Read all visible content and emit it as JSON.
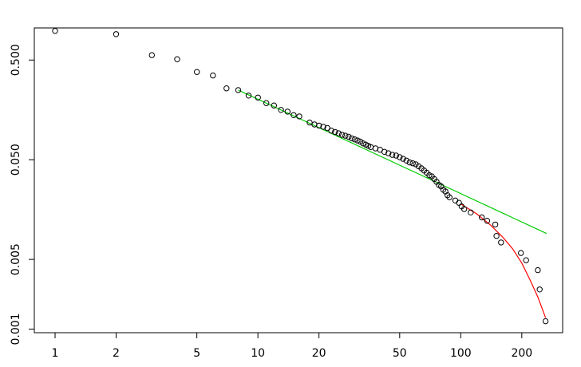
{
  "chart_data": {
    "type": "scatter",
    "title": "",
    "xlabel": "",
    "ylabel": "",
    "x_scale": "log",
    "y_scale": "log",
    "xlim": [
      0.79,
      318
    ],
    "ylim": [
      0.00092,
      1.05
    ],
    "x_ticks": [
      {
        "value": 1,
        "label": "1"
      },
      {
        "value": 2,
        "label": "2"
      },
      {
        "value": 5,
        "label": "5"
      },
      {
        "value": 10,
        "label": "10"
      },
      {
        "value": 20,
        "label": "20"
      },
      {
        "value": 50,
        "label": "50"
      },
      {
        "value": 100,
        "label": "100"
      },
      {
        "value": 200,
        "label": "200"
      }
    ],
    "y_ticks": [
      {
        "value": 0.001,
        "label": "0.001"
      },
      {
        "value": 0.005,
        "label": "0.005"
      },
      {
        "value": 0.05,
        "label": "0.050"
      },
      {
        "value": 0.5,
        "label": "0.500"
      }
    ],
    "grid": false,
    "point_color": "#000000",
    "points": [
      {
        "x": 1,
        "y": 0.98
      },
      {
        "x": 2,
        "y": 0.91
      },
      {
        "x": 3,
        "y": 0.56
      },
      {
        "x": 4,
        "y": 0.51
      },
      {
        "x": 5,
        "y": 0.38
      },
      {
        "x": 6,
        "y": 0.35
      },
      {
        "x": 7,
        "y": 0.26
      },
      {
        "x": 8,
        "y": 0.25
      },
      {
        "x": 9,
        "y": 0.22
      },
      {
        "x": 10,
        "y": 0.21
      },
      {
        "x": 11,
        "y": 0.185
      },
      {
        "x": 12,
        "y": 0.175
      },
      {
        "x": 13,
        "y": 0.158
      },
      {
        "x": 14,
        "y": 0.152
      },
      {
        "x": 15,
        "y": 0.14
      },
      {
        "x": 16,
        "y": 0.136
      },
      {
        "x": 18,
        "y": 0.118
      },
      {
        "x": 19,
        "y": 0.113
      },
      {
        "x": 20,
        "y": 0.11
      },
      {
        "x": 21,
        "y": 0.107
      },
      {
        "x": 22,
        "y": 0.104
      },
      {
        "x": 23,
        "y": 0.098
      },
      {
        "x": 24,
        "y": 0.095
      },
      {
        "x": 25,
        "y": 0.092
      },
      {
        "x": 26,
        "y": 0.089
      },
      {
        "x": 27,
        "y": 0.087
      },
      {
        "x": 28,
        "y": 0.085
      },
      {
        "x": 29,
        "y": 0.082
      },
      {
        "x": 30,
        "y": 0.08
      },
      {
        "x": 31,
        "y": 0.078
      },
      {
        "x": 32,
        "y": 0.076
      },
      {
        "x": 33,
        "y": 0.073
      },
      {
        "x": 34,
        "y": 0.071
      },
      {
        "x": 35,
        "y": 0.069
      },
      {
        "x": 36,
        "y": 0.067
      },
      {
        "x": 38,
        "y": 0.065
      },
      {
        "x": 40,
        "y": 0.063
      },
      {
        "x": 42,
        "y": 0.06
      },
      {
        "x": 44,
        "y": 0.058
      },
      {
        "x": 46,
        "y": 0.056
      },
      {
        "x": 48,
        "y": 0.055
      },
      {
        "x": 50,
        "y": 0.053
      },
      {
        "x": 52,
        "y": 0.051
      },
      {
        "x": 54,
        "y": 0.049
      },
      {
        "x": 56,
        "y": 0.047
      },
      {
        "x": 58,
        "y": 0.046
      },
      {
        "x": 60,
        "y": 0.045
      },
      {
        "x": 62,
        "y": 0.043
      },
      {
        "x": 64,
        "y": 0.041
      },
      {
        "x": 66,
        "y": 0.039
      },
      {
        "x": 68,
        "y": 0.037
      },
      {
        "x": 70,
        "y": 0.035
      },
      {
        "x": 72,
        "y": 0.034
      },
      {
        "x": 74,
        "y": 0.032
      },
      {
        "x": 76,
        "y": 0.03
      },
      {
        "x": 78,
        "y": 0.028
      },
      {
        "x": 80,
        "y": 0.027
      },
      {
        "x": 82,
        "y": 0.025
      },
      {
        "x": 84,
        "y": 0.024
      },
      {
        "x": 86,
        "y": 0.022
      },
      {
        "x": 88,
        "y": 0.021
      },
      {
        "x": 94,
        "y": 0.0195
      },
      {
        "x": 98,
        "y": 0.0185
      },
      {
        "x": 101,
        "y": 0.017
      },
      {
        "x": 104,
        "y": 0.016
      },
      {
        "x": 112,
        "y": 0.0148
      },
      {
        "x": 127,
        "y": 0.0132
      },
      {
        "x": 135,
        "y": 0.0122
      },
      {
        "x": 148,
        "y": 0.0112
      },
      {
        "x": 150,
        "y": 0.0086
      },
      {
        "x": 158,
        "y": 0.0074
      },
      {
        "x": 198,
        "y": 0.0058
      },
      {
        "x": 210,
        "y": 0.0049
      },
      {
        "x": 240,
        "y": 0.0039
      },
      {
        "x": 245,
        "y": 0.0025
      },
      {
        "x": 262,
        "y": 0.0012
      }
    ],
    "lines": [
      {
        "color": "#00cc00",
        "x": [
          8,
          265
        ],
        "y": [
          0.25,
          0.0091
        ]
      },
      {
        "color": "#ff0000",
        "x": [
          100,
          120,
          140,
          160,
          180,
          200,
          220,
          240,
          262
        ],
        "y": [
          0.018,
          0.0143,
          0.0111,
          0.0085,
          0.0064,
          0.0046,
          0.0031,
          0.0021,
          0.0013
        ]
      }
    ]
  }
}
